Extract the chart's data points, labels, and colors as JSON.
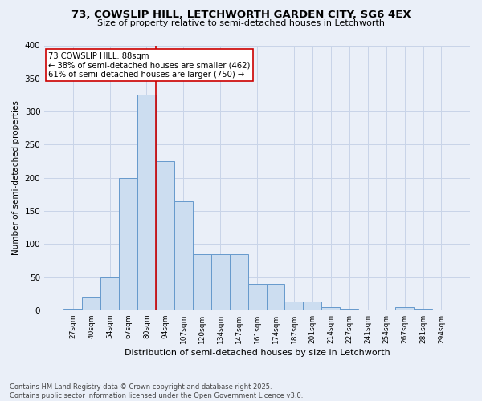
{
  "title1": "73, COWSLIP HILL, LETCHWORTH GARDEN CITY, SG6 4EX",
  "title2": "Size of property relative to semi-detached houses in Letchworth",
  "xlabel": "Distribution of semi-detached houses by size in Letchworth",
  "ylabel": "Number of semi-detached properties",
  "bins": [
    "27sqm",
    "40sqm",
    "54sqm",
    "67sqm",
    "80sqm",
    "94sqm",
    "107sqm",
    "120sqm",
    "134sqm",
    "147sqm",
    "161sqm",
    "174sqm",
    "187sqm",
    "201sqm",
    "214sqm",
    "227sqm",
    "241sqm",
    "254sqm",
    "267sqm",
    "281sqm",
    "294sqm"
  ],
  "bar_heights": [
    2,
    20,
    50,
    200,
    325,
    225,
    165,
    85,
    85,
    85,
    40,
    40,
    13,
    13,
    5,
    2,
    0,
    0,
    5,
    2,
    0
  ],
  "bar_color": "#ccddf0",
  "bar_edge_color": "#6699cc",
  "grid_color": "#c8d4e8",
  "bg_color": "#eaeff8",
  "marker_line_color": "#cc0000",
  "annotation_box_color": "#ffffff",
  "annotation_box_edge": "#cc0000",
  "footer1": "Contains HM Land Registry data © Crown copyright and database right 2025.",
  "footer2": "Contains public sector information licensed under the Open Government Licence v3.0.",
  "ylim": [
    0,
    400
  ],
  "yticks": [
    0,
    50,
    100,
    150,
    200,
    250,
    300,
    350,
    400
  ]
}
